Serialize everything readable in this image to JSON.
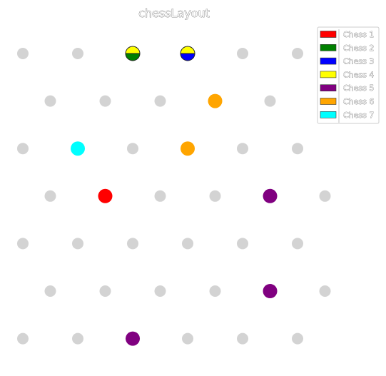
{
  "chart_data": {
    "type": "scatter",
    "title": "chessLayout",
    "xlabel": "",
    "ylabel": "",
    "grid": false,
    "legend_position": "top-right",
    "board": {
      "rows": 7,
      "empty_color": "#d3d3d3",
      "row_positions": [
        [
          0,
          1,
          2,
          3,
          4,
          5
        ],
        [
          0.5,
          1.5,
          2.5,
          3.5,
          4.5
        ],
        [
          0,
          1,
          2,
          3,
          4,
          5
        ],
        [
          0.5,
          1.5,
          2.5,
          3.5,
          4.5,
          5.5
        ],
        [
          0,
          1,
          2,
          3,
          4,
          5
        ],
        [
          0.5,
          1.5,
          2.5,
          3.5,
          4.5,
          5.5
        ],
        [
          0,
          1,
          2,
          3,
          4,
          5
        ]
      ]
    },
    "series": [
      {
        "name": "Chess 1",
        "color": "#ff0000",
        "points": [
          {
            "row": 3,
            "col": 1.5
          }
        ]
      },
      {
        "name": "Chess 2",
        "color": "#008000",
        "points": [
          {
            "row": 0,
            "col": 2,
            "half": "bottom"
          }
        ]
      },
      {
        "name": "Chess 3",
        "color": "#0000ff",
        "points": [
          {
            "row": 0,
            "col": 3,
            "half": "bottom"
          }
        ]
      },
      {
        "name": "Chess 4",
        "color": "#ffff00",
        "points": [
          {
            "row": 0,
            "col": 2,
            "half": "top"
          },
          {
            "row": 0,
            "col": 3,
            "half": "top"
          }
        ]
      },
      {
        "name": "Chess 5",
        "color": "#800080",
        "points": [
          {
            "row": 3,
            "col": 4.5
          },
          {
            "row": 5,
            "col": 4.5
          },
          {
            "row": 6,
            "col": 2
          }
        ]
      },
      {
        "name": "Chess 6",
        "color": "#ffa500",
        "points": [
          {
            "row": 1,
            "col": 3.5
          },
          {
            "row": 2,
            "col": 3
          }
        ]
      },
      {
        "name": "Chess 7",
        "color": "#00ffff",
        "points": [
          {
            "row": 2,
            "col": 1
          }
        ]
      }
    ]
  }
}
